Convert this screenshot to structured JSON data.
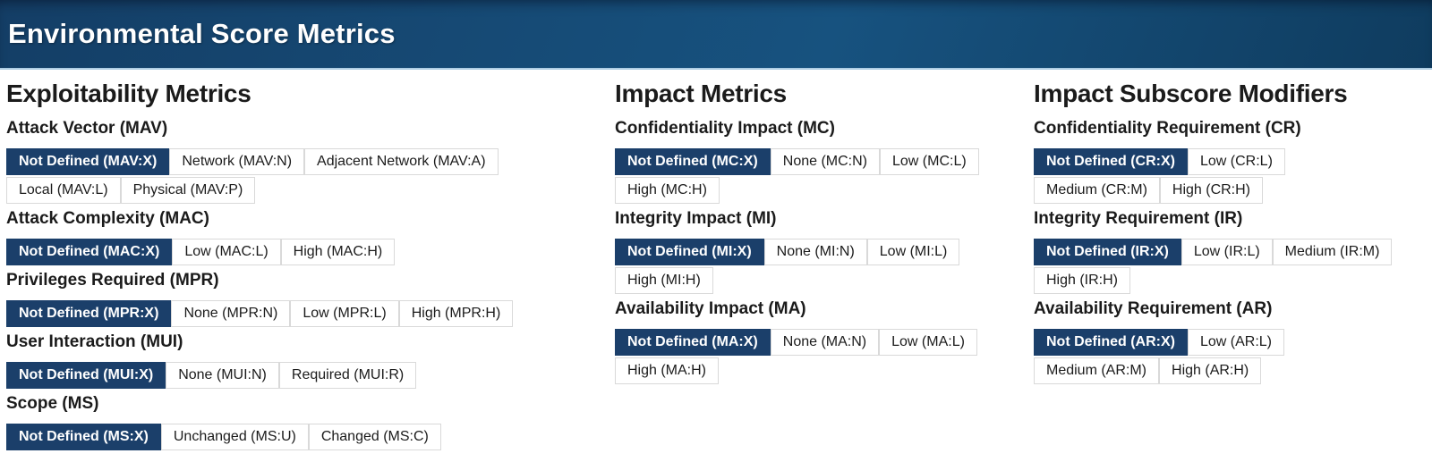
{
  "header": {
    "title": "Environmental Score Metrics"
  },
  "colors": {
    "selected_button_bg": "#1b3f6a",
    "selected_button_text": "#ffffff",
    "button_border": "#d9d9d9",
    "header_gradient_dark": "#0f3c5f",
    "header_gradient_light": "#17527f",
    "header_underline": "#aecde3"
  },
  "columns": [
    {
      "title": "Exploitability Metrics",
      "groups": [
        {
          "label": "Attack Vector (MAV)",
          "wrap_after": 3,
          "options": [
            {
              "label": "Not Defined (MAV:X)",
              "selected": true
            },
            {
              "label": "Network (MAV:N)",
              "selected": false
            },
            {
              "label": "Adjacent Network (MAV:A)",
              "selected": false
            },
            {
              "label": "Local (MAV:L)",
              "selected": false
            },
            {
              "label": "Physical (MAV:P)",
              "selected": false
            }
          ]
        },
        {
          "label": "Attack Complexity (MAC)",
          "wrap_after": 0,
          "options": [
            {
              "label": "Not Defined (MAC:X)",
              "selected": true
            },
            {
              "label": "Low (MAC:L)",
              "selected": false
            },
            {
              "label": "High (MAC:H)",
              "selected": false
            }
          ]
        },
        {
          "label": "Privileges Required (MPR)",
          "wrap_after": 0,
          "options": [
            {
              "label": "Not Defined (MPR:X)",
              "selected": true
            },
            {
              "label": "None (MPR:N)",
              "selected": false
            },
            {
              "label": "Low (MPR:L)",
              "selected": false
            },
            {
              "label": "High (MPR:H)",
              "selected": false
            }
          ]
        },
        {
          "label": "User Interaction (MUI)",
          "wrap_after": 0,
          "options": [
            {
              "label": "Not Defined (MUI:X)",
              "selected": true
            },
            {
              "label": "None (MUI:N)",
              "selected": false
            },
            {
              "label": "Required (MUI:R)",
              "selected": false
            }
          ]
        },
        {
          "label": "Scope (MS)",
          "wrap_after": 0,
          "options": [
            {
              "label": "Not Defined (MS:X)",
              "selected": true
            },
            {
              "label": "Unchanged (MS:U)",
              "selected": false
            },
            {
              "label": "Changed (MS:C)",
              "selected": false
            }
          ]
        }
      ]
    },
    {
      "title": "Impact Metrics",
      "groups": [
        {
          "label": "Confidentiality Impact (MC)",
          "wrap_after": 3,
          "options": [
            {
              "label": "Not Defined (MC:X)",
              "selected": true
            },
            {
              "label": "None (MC:N)",
              "selected": false
            },
            {
              "label": "Low (MC:L)",
              "selected": false
            },
            {
              "label": "High (MC:H)",
              "selected": false
            }
          ]
        },
        {
          "label": "Integrity Impact (MI)",
          "wrap_after": 3,
          "options": [
            {
              "label": "Not Defined (MI:X)",
              "selected": true
            },
            {
              "label": "None (MI:N)",
              "selected": false
            },
            {
              "label": "Low (MI:L)",
              "selected": false
            },
            {
              "label": "High (MI:H)",
              "selected": false
            }
          ]
        },
        {
          "label": "Availability Impact (MA)",
          "wrap_after": 3,
          "options": [
            {
              "label": "Not Defined (MA:X)",
              "selected": true
            },
            {
              "label": "None (MA:N)",
              "selected": false
            },
            {
              "label": "Low (MA:L)",
              "selected": false
            },
            {
              "label": "High (MA:H)",
              "selected": false
            }
          ]
        }
      ]
    },
    {
      "title": "Impact Subscore Modifiers",
      "groups": [
        {
          "label": "Confidentiality Requirement (CR)",
          "wrap_after": 2,
          "options": [
            {
              "label": "Not Defined (CR:X)",
              "selected": true
            },
            {
              "label": "Low (CR:L)",
              "selected": false
            },
            {
              "label": "Medium (CR:M)",
              "selected": false
            },
            {
              "label": "High (CR:H)",
              "selected": false
            }
          ]
        },
        {
          "label": "Integrity Requirement (IR)",
          "wrap_after": 3,
          "options": [
            {
              "label": "Not Defined (IR:X)",
              "selected": true
            },
            {
              "label": "Low (IR:L)",
              "selected": false
            },
            {
              "label": "Medium (IR:M)",
              "selected": false
            },
            {
              "label": "High (IR:H)",
              "selected": false
            }
          ]
        },
        {
          "label": "Availability Requirement (AR)",
          "wrap_after": 2,
          "options": [
            {
              "label": "Not Defined (AR:X)",
              "selected": true
            },
            {
              "label": "Low (AR:L)",
              "selected": false
            },
            {
              "label": "Medium (AR:M)",
              "selected": false
            },
            {
              "label": "High (AR:H)",
              "selected": false
            }
          ]
        }
      ]
    }
  ]
}
